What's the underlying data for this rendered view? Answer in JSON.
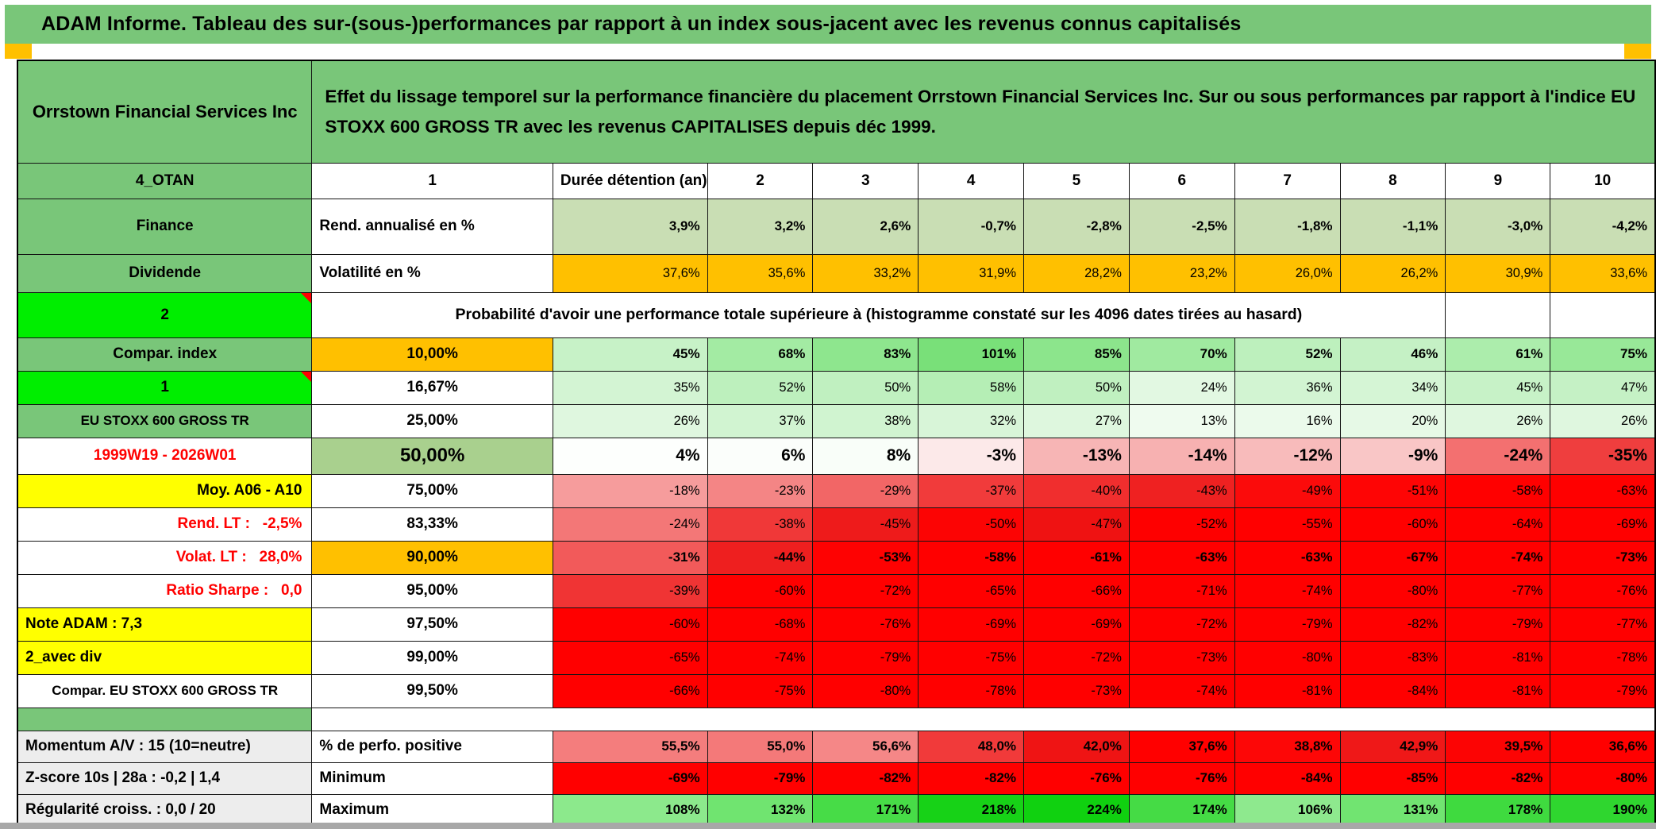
{
  "title": "ADAM Informe. Tableau des sur-(sous-)performances par rapport à un index sous-jacent avec les revenus connus capitalisés",
  "accent_colors": {
    "frame_orange": "#FFC000",
    "header_green": "#79C679",
    "lime": "#00EE00",
    "yellow": "#FFFF00",
    "sage": "#A9D08E",
    "light_sage": "#C9DEB4",
    "gray_label": "#EDEDED",
    "red": "#FF0000"
  },
  "table": {
    "rows": [
      {
        "type": "header",
        "a": {
          "text": "Orrstown Financial Services Inc",
          "bg": "#79C679"
        },
        "main": {
          "text": "Effet du lissage temporel sur la performance financière du placement Orrstown Financial Services Inc. Sur ou sous performances par rapport à l'indice EU STOXX 600 GROSS TR avec les revenus CAPITALISES depuis déc 1999.",
          "bg": "#79C679"
        }
      },
      {
        "type": "cols",
        "a": {
          "text": "4_OTAN",
          "bg": "#79C679"
        },
        "b": {
          "text": "Durée détention (an)",
          "align": "left"
        },
        "cells": [
          "1",
          "2",
          "3",
          "4",
          "5",
          "6",
          "7",
          "8",
          "9",
          "10"
        ]
      },
      {
        "type": "data",
        "bold": true,
        "a": {
          "text": "Finance",
          "bg": "#79C679"
        },
        "b": {
          "text": "Rend. annualisé en %",
          "align": "left"
        },
        "cells": [
          "3,9%",
          "3,2%",
          "2,6%",
          "-0,7%",
          "-2,8%",
          "-2,5%",
          "-1,8%",
          "-1,1%",
          "-3,0%",
          "-4,2%"
        ],
        "cell_colors": [
          "#C9DEB4",
          "#C9DEB4",
          "#C9DEB4",
          "#C9DEB4",
          "#C9DEB4",
          "#C9DEB4",
          "#C9DEB4",
          "#C9DEB4",
          "#C9DEB4",
          "#C9DEB4"
        ]
      },
      {
        "type": "data",
        "bold": false,
        "a": {
          "text": "Dividende",
          "bg": "#79C679"
        },
        "b": {
          "text": "Volatilité en %",
          "align": "left"
        },
        "cells": [
          "37,6%",
          "35,6%",
          "33,2%",
          "31,9%",
          "28,2%",
          "23,2%",
          "26,0%",
          "26,2%",
          "30,9%",
          "33,6%"
        ],
        "cell_colors": [
          "#FFC000",
          "#FFC000",
          "#FFC000",
          "#FFC000",
          "#FFC000",
          "#FFC000",
          "#FFC000",
          "#FFC000",
          "#FFC000",
          "#FFC000"
        ]
      },
      {
        "type": "merge",
        "a": {
          "text": "2",
          "bg": "#00EE00",
          "notch": true
        },
        "text": "Probabilité d'avoir une performance totale supérieure à (histogramme constaté sur les 4096 dates tirées au hasard)"
      },
      {
        "type": "data",
        "bold": true,
        "a": {
          "text": "Compar. index",
          "bg": "#79C679"
        },
        "b": {
          "text": "10,00%",
          "bg": "#FFC000"
        },
        "cells": [
          "45%",
          "68%",
          "83%",
          "101%",
          "85%",
          "70%",
          "52%",
          "46%",
          "61%",
          "75%"
        ],
        "cell_colors": [
          "#C7F2C7",
          "#A3EBA3",
          "#8EE68E",
          "#79E079",
          "#8CE58C",
          "#A0EAA0",
          "#BDF0BD",
          "#C5F1C5",
          "#ACEDAC",
          "#98E898"
        ]
      },
      {
        "type": "data",
        "bold": false,
        "a": {
          "text": "1",
          "bg": "#00EE00",
          "notch": true
        },
        "b": {
          "text": "16,67%"
        },
        "cells": [
          "35%",
          "52%",
          "50%",
          "58%",
          "50%",
          "24%",
          "36%",
          "34%",
          "45%",
          "47%"
        ],
        "cell_colors": [
          "#D3F4D3",
          "#BDF0BD",
          "#C0F0C0",
          "#B5EEB5",
          "#C0F0C0",
          "#E2F8E2",
          "#D2F4D2",
          "#D5F5D5",
          "#C7F2C7",
          "#C5F1C5"
        ]
      },
      {
        "type": "data",
        "bold": false,
        "a": {
          "text": "EU STOXX 600 GROSS TR",
          "bg": "#79C679",
          "size": 17
        },
        "b": {
          "text": "25,00%"
        },
        "cells": [
          "26%",
          "37%",
          "38%",
          "32%",
          "27%",
          "13%",
          "16%",
          "20%",
          "26%",
          "26%"
        ],
        "cell_colors": [
          "#DFF7DF",
          "#D1F4D1",
          "#D0F4D0",
          "#D8F5D8",
          "#DEF7DE",
          "#EFFBEF",
          "#EBFAEB",
          "#E6F9E6",
          "#DFF7DF",
          "#DFF7DF"
        ]
      },
      {
        "type": "data",
        "bold": true,
        "size": 21,
        "a": {
          "text": "1999W19 - 2026W01",
          "bg": "#FFFFFF",
          "fg": "#FF0000"
        },
        "b": {
          "text": "50,00%",
          "bg": "#A9D08E",
          "size": 24
        },
        "cells": [
          "4%",
          "6%",
          "8%",
          "-3%",
          "-13%",
          "-14%",
          "-12%",
          "-9%",
          "-24%",
          "-35%"
        ],
        "cell_colors": [
          "#FDFFFD",
          "#FBFEFB",
          "#F9FEF9",
          "#FCE9E9",
          "#F7B5B5",
          "#F7B1B1",
          "#F8BBBB",
          "#F9C6C6",
          "#F37070",
          "#EF3E3E"
        ]
      },
      {
        "type": "data",
        "bold": false,
        "a": {
          "text": "Moy. A06 - A10",
          "bg": "#FFFF00",
          "align": "right"
        },
        "b": {
          "text": "75,00%"
        },
        "cells": [
          "-18%",
          "-23%",
          "-29%",
          "-37%",
          "-40%",
          "-43%",
          "-49%",
          "-51%",
          "-58%",
          "-63%"
        ],
        "cell_colors": [
          "#F69C9C",
          "#F48585",
          "#F26666",
          "#F13B3B",
          "#F02E2E",
          "#EF2121",
          "#FB0B0B",
          "#FE0505",
          "#FF0000",
          "#FF0000"
        ]
      },
      {
        "type": "data",
        "bold": false,
        "a": {
          "text": "Rend. LT :   -2,5%",
          "bg": "#FFFFFF",
          "fg": "#FF0000",
          "align": "right"
        },
        "b": {
          "text": "83,33%"
        },
        "cells": [
          "-24%",
          "-38%",
          "-45%",
          "-50%",
          "-47%",
          "-52%",
          "-55%",
          "-60%",
          "-64%",
          "-69%"
        ],
        "cell_colors": [
          "#F37777",
          "#F03838",
          "#EE1B1B",
          "#FC0404",
          "#EF1212",
          "#FE0000",
          "#FF0000",
          "#FF0000",
          "#FF0000",
          "#FF0000"
        ]
      },
      {
        "type": "data",
        "bold": true,
        "a": {
          "text": "Volat. LT :   28,0%",
          "bg": "#FFFFFF",
          "fg": "#FF0000",
          "align": "right"
        },
        "b": {
          "text": "90,00%",
          "bg": "#FFC000"
        },
        "cells": [
          "-31%",
          "-44%",
          "-53%",
          "-58%",
          "-61%",
          "-63%",
          "-63%",
          "-67%",
          "-74%",
          "-73%"
        ],
        "cell_colors": [
          "#F25A5A",
          "#EE1F1F",
          "#FE0202",
          "#FF0000",
          "#FF0000",
          "#FF0000",
          "#FF0000",
          "#FF0000",
          "#FF0000",
          "#FF0000"
        ]
      },
      {
        "type": "data",
        "bold": false,
        "a": {
          "text": "Ratio Sharpe :   0,0",
          "bg": "#FFFFFF",
          "fg": "#FF0000",
          "align": "right"
        },
        "b": {
          "text": "95,00%"
        },
        "cells": [
          "-39%",
          "-60%",
          "-72%",
          "-65%",
          "-66%",
          "-71%",
          "-74%",
          "-80%",
          "-77%",
          "-76%"
        ],
        "cell_colors": [
          "#F03434",
          "#FF0000",
          "#FF0000",
          "#FF0000",
          "#FF0000",
          "#FF0000",
          "#FF0000",
          "#FF0000",
          "#FF0000",
          "#FF0000"
        ]
      },
      {
        "type": "data",
        "bold": false,
        "a": {
          "text": "Note ADAM : 7,3",
          "bg": "#FFFF00",
          "align": "left"
        },
        "b": {
          "text": "97,50%"
        },
        "cells": [
          "-60%",
          "-68%",
          "-76%",
          "-69%",
          "-69%",
          "-72%",
          "-79%",
          "-82%",
          "-79%",
          "-77%"
        ],
        "cell_colors": [
          "#FF0000",
          "#FF0000",
          "#FF0000",
          "#FF0000",
          "#FF0000",
          "#FF0000",
          "#FF0000",
          "#FF0000",
          "#FF0000",
          "#FF0000"
        ]
      },
      {
        "type": "data",
        "bold": false,
        "a": {
          "text": "2_avec div",
          "bg": "#FFFF00",
          "align": "left"
        },
        "b": {
          "text": "99,00%"
        },
        "cells": [
          "-65%",
          "-74%",
          "-79%",
          "-75%",
          "-72%",
          "-73%",
          "-80%",
          "-83%",
          "-81%",
          "-78%"
        ],
        "cell_colors": [
          "#FF0000",
          "#FF0000",
          "#FF0000",
          "#FF0000",
          "#FF0000",
          "#FF0000",
          "#FF0000",
          "#FF0000",
          "#FF0000",
          "#FF0000"
        ]
      },
      {
        "type": "data",
        "bold": false,
        "a": {
          "text": "Compar. EU STOXX 600 GROSS TR",
          "bg": "#FFFFFF",
          "size": 17
        },
        "b": {
          "text": "99,50%"
        },
        "cells": [
          "-66%",
          "-75%",
          "-80%",
          "-78%",
          "-73%",
          "-74%",
          "-81%",
          "-84%",
          "-81%",
          "-79%"
        ],
        "cell_colors": [
          "#FF0000",
          "#FF0000",
          "#FF0000",
          "#FF0000",
          "#FF0000",
          "#FF0000",
          "#FF0000",
          "#FF0000",
          "#FF0000",
          "#FF0000"
        ]
      },
      {
        "type": "gap",
        "a": {
          "text": "",
          "bg": "#79C679"
        }
      },
      {
        "type": "data",
        "bold": true,
        "a": {
          "text": "Momentum A/V : 15 (10=neutre)",
          "bg": "#EDEDED",
          "align": "left"
        },
        "b": {
          "text": "% de perfo. positive",
          "align": "left"
        },
        "cells": [
          "55,5%",
          "55,0%",
          "56,6%",
          "48,0%",
          "42,0%",
          "37,6%",
          "38,8%",
          "42,9%",
          "39,5%",
          "36,6%"
        ],
        "cell_colors": [
          "#F47D7D",
          "#F47979",
          "#F58787",
          "#F13A3A",
          "#EF1414",
          "#FF0000",
          "#FD0707",
          "#EF1818",
          "#FC0404",
          "#FF0000"
        ]
      },
      {
        "type": "data",
        "bold": true,
        "a": {
          "text": "Z-score 10s | 28a : -0,2 | 1,4",
          "bg": "#EDEDED",
          "align": "left"
        },
        "b": {
          "text": "Minimum",
          "align": "left"
        },
        "cells": [
          "-69%",
          "-79%",
          "-82%",
          "-82%",
          "-76%",
          "-76%",
          "-84%",
          "-85%",
          "-82%",
          "-80%"
        ],
        "cell_colors": [
          "#FF0000",
          "#FF0000",
          "#FF0000",
          "#FF0000",
          "#FF0000",
          "#FF0000",
          "#FF0000",
          "#FF0000",
          "#FF0000",
          "#FF0000"
        ]
      },
      {
        "type": "data",
        "bold": true,
        "a": {
          "text": "Régularité croiss. : 0,0 / 20",
          "bg": "#EDEDED",
          "align": "left"
        },
        "b": {
          "text": "Maximum",
          "align": "left"
        },
        "cells": [
          "108%",
          "132%",
          "171%",
          "218%",
          "224%",
          "174%",
          "106%",
          "131%",
          "178%",
          "190%"
        ],
        "cell_colors": [
          "#8CE98C",
          "#70E470",
          "#47DC47",
          "#17D217",
          "#10D110",
          "#45DB45",
          "#8EE98E",
          "#71E471",
          "#3FDA3F",
          "#2FD62F"
        ]
      }
    ]
  }
}
